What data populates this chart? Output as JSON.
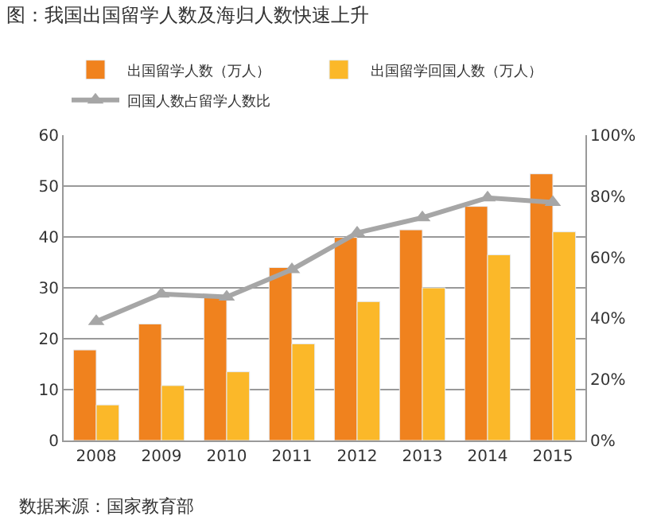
{
  "chart_data": {
    "type": "bar",
    "title": "图：我国出国留学人数及海归人数快速上升",
    "categories": [
      "2008",
      "2009",
      "2010",
      "2011",
      "2012",
      "2013",
      "2014",
      "2015"
    ],
    "series": [
      {
        "name": "出国留学人数（万人）",
        "color": "#f0821e",
        "values": [
          17.8,
          22.9,
          28.5,
          34,
          39.9,
          41.4,
          46,
          52.4
        ]
      },
      {
        "name": "出国留学回国人数（万人）",
        "color": "#fbb829",
        "values": [
          7,
          10.8,
          13.5,
          19,
          27.3,
          30,
          36.5,
          41
        ]
      },
      {
        "name": "回国人数占留学人数比",
        "type": "line",
        "axis": "y2",
        "color": "#a6a6a6",
        "marker": "triangle",
        "values": [
          39,
          48,
          47,
          56,
          68,
          73,
          79.5,
          78
        ]
      }
    ],
    "ylim": [
      0,
      60
    ],
    "yticks": [
      0,
      10,
      20,
      30,
      40,
      50,
      60
    ],
    "y2lim": [
      0,
      100
    ],
    "y2ticks": [
      {
        "value": 0,
        "label": "0%"
      },
      {
        "value": 20,
        "label": "20%"
      },
      {
        "value": 40,
        "label": "40%"
      },
      {
        "value": 60,
        "label": "60%"
      },
      {
        "value": 80,
        "label": "80%"
      },
      {
        "value": 100,
        "label": "100%"
      }
    ],
    "grid": "y",
    "legend": "top",
    "annotations": [
      "数据来源：国家教育部"
    ]
  }
}
